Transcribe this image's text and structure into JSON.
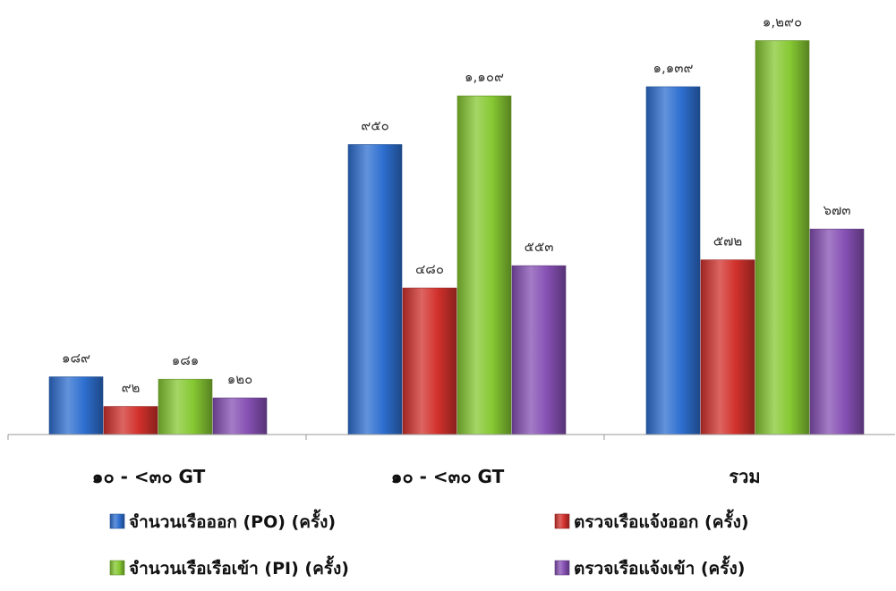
{
  "chart_data": {
    "type": "bar",
    "title": "",
    "xlabel": "",
    "ylabel": "",
    "categories": [
      "๑๐ - <๓๐ GT",
      "๑๐ - <๓๐ GT",
      "รวม"
    ],
    "series": [
      {
        "name": "จำนวนเรือออก (PO) (ครั้ง)",
        "color": "#2E6FD0",
        "values": [
          189,
          950,
          1139
        ],
        "labels": [
          "๑๘๙",
          "๙๕๐",
          "๑,๑๓๙"
        ]
      },
      {
        "name": "ตรวจเรือแจ้งออก (ครั้ง)",
        "color": "#D2312C",
        "values": [
          92,
          480,
          572
        ],
        "labels": [
          "๙๒",
          "๔๘๐",
          "๕๗๒"
        ]
      },
      {
        "name": "จำนวนเรือเรือเข้า (PI) (ครั้ง)",
        "color": "#86C832",
        "values": [
          181,
          1109,
          1290
        ],
        "labels": [
          "๑๘๑",
          "๑,๑๐๙",
          "๑,๒๙๐"
        ]
      },
      {
        "name": "ตรวจเรือแจ้งเข้า (ครั้ง)",
        "color": "#8650B4",
        "values": [
          120,
          553,
          673
        ],
        "labels": [
          "๑๒๐",
          "๕๕๓",
          "๖๗๓"
        ]
      }
    ],
    "ylim": [
      0,
      1300
    ],
    "grid": false,
    "legend_position": "bottom"
  }
}
